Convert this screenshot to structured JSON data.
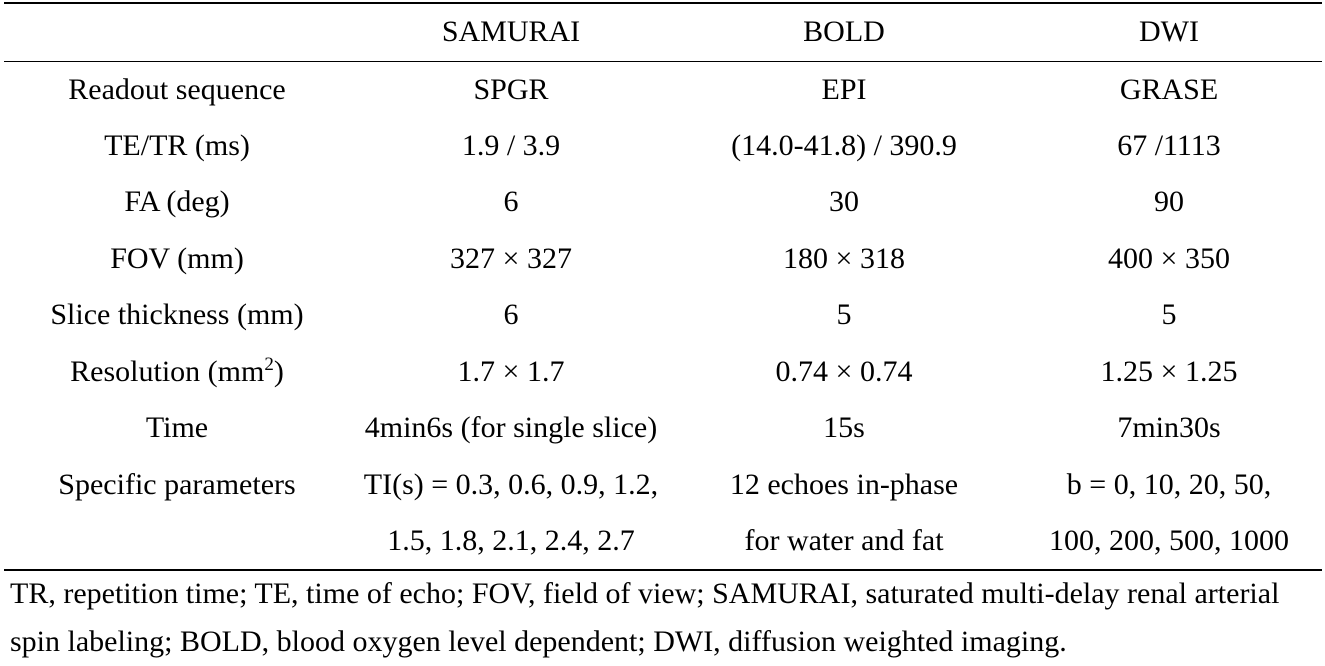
{
  "table": {
    "headers": [
      "",
      "SAMURAI",
      "BOLD",
      "DWI"
    ],
    "rows": [
      {
        "label": "Readout sequence",
        "label_sup": "",
        "label_suffix": "",
        "cells": [
          "SPGR",
          "EPI",
          "GRASE"
        ]
      },
      {
        "label": "TE/TR (ms)",
        "label_sup": "",
        "label_suffix": "",
        "cells": [
          "1.9 / 3.9",
          "(14.0-41.8) / 390.9",
          "67 /1113"
        ]
      },
      {
        "label": "FA (deg)",
        "label_sup": "",
        "label_suffix": "",
        "cells": [
          "6",
          "30",
          "90"
        ]
      },
      {
        "label": "FOV (mm)",
        "label_sup": "",
        "label_suffix": "",
        "cells": [
          "327 × 327",
          "180 × 318",
          "400 × 350"
        ]
      },
      {
        "label": "Slice thickness (mm)",
        "label_sup": "",
        "label_suffix": "",
        "cells": [
          "6",
          "5",
          "5"
        ]
      },
      {
        "label": "Resolution (mm",
        "label_sup": "2",
        "label_suffix": ")",
        "cells": [
          "1.7 × 1.7",
          "0.74 × 0.74",
          "1.25 × 1.25"
        ]
      },
      {
        "label": "Time",
        "label_sup": "",
        "label_suffix": "",
        "cells": [
          "4min6s (for single slice)",
          "15s",
          "7min30s"
        ]
      },
      {
        "label": "Specific parameters",
        "label_sup": "",
        "label_suffix": "",
        "cells": [
          "TI(s) = 0.3, 0.6, 0.9, 1.2,",
          "12 echoes in-phase",
          "b = 0, 10, 20, 50,"
        ]
      },
      {
        "label": "",
        "label_sup": "",
        "label_suffix": "",
        "cells": [
          "1.5, 1.8, 2.1, 2.4, 2.7",
          "for water and fat",
          "100, 200, 500, 1000"
        ]
      }
    ]
  },
  "footnote": "TR, repetition time; TE, time of echo; FOV, field of view; SAMURAI, saturated multi-delay renal arterial spin labeling; BOLD, blood oxygen level dependent; DWI, diffusion weighted imaging."
}
